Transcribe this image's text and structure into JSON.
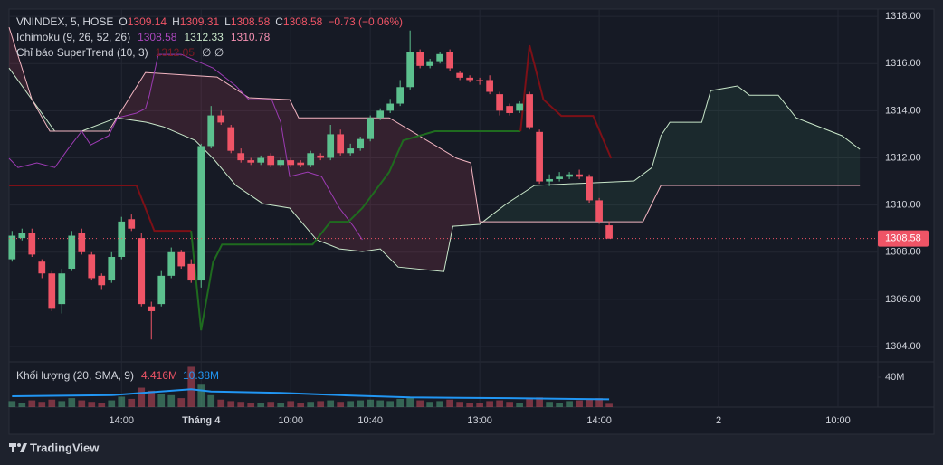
{
  "chart_data": {
    "type": "candlestick",
    "title": "VNINDEX, 5, HOSE",
    "ohlc_legend": [
      {
        "label": "O",
        "value": 1309.14
      },
      {
        "label": "H",
        "value": 1309.31
      },
      {
        "label": "L",
        "value": 1308.58
      },
      {
        "label": "C",
        "value": 1308.58
      }
    ],
    "change": "−0.73 (−0.06%)",
    "up_color": "#5cc08e",
    "down_color": "#ef5466",
    "xlim": [
      -0.3,
      87
    ],
    "ylim": [
      1303.35,
      1318.31
    ],
    "xticks": [
      {
        "value": 11,
        "label": "14:00"
      },
      {
        "value": 19,
        "label": "Tháng 4"
      },
      {
        "value": 28,
        "label": "10:00"
      },
      {
        "value": 36,
        "label": "10:40"
      },
      {
        "value": 47,
        "label": "13:00"
      },
      {
        "value": 59,
        "label": "14:00"
      },
      {
        "value": 71,
        "label": "2"
      },
      {
        "value": 83,
        "label": "10:00"
      }
    ],
    "yticks": [
      {
        "value": 1304,
        "label": "1304.00"
      },
      {
        "value": 1306,
        "label": "1306.00"
      },
      {
        "value": 1308,
        "label": "1308.00"
      },
      {
        "value": 1310,
        "label": "1310.00"
      },
      {
        "value": 1312,
        "label": "1312.00"
      },
      {
        "value": 1314,
        "label": "1314.00"
      },
      {
        "value": 1316,
        "label": "1316.00"
      },
      {
        "value": 1318,
        "label": "1318.00"
      }
    ],
    "last_price": 1308.58,
    "open": [
      1307.7,
      1308.6,
      1308.8,
      1307.6,
      1307.1,
      1305.8,
      1307.3,
      1308.8,
      1307.9,
      1307.0,
      1306.8,
      1307.8,
      1309.4,
      1308.6,
      1305.7,
      1305.8,
      1307.0,
      1308.0,
      1307.5,
      1306.8,
      1312.5,
      1313.8,
      1313.3,
      1312.2,
      1311.9,
      1311.8,
      1312.1,
      1311.7,
      1311.9,
      1311.8,
      1311.7,
      1312.1,
      1312.0,
      1313.0,
      1312.2,
      1312.4,
      1312.8,
      1313.7,
      1314.0,
      1314.3,
      1315.0,
      1316.5,
      1315.9,
      1316.1,
      1316.5,
      1315.6,
      1315.4,
      1315.3,
      1315.3,
      1314.7,
      1314.2,
      1314.0,
      1314.7,
      1313.1,
      1311.0,
      1311.1,
      1311.2,
      1311.3,
      1311.2,
      1310.2,
      1309.14
    ],
    "high": [
      1308.9,
      1309.0,
      1309.0,
      1307.7,
      1307.2,
      1307.3,
      1308.9,
      1309.0,
      1308.0,
      1307.1,
      1308.0,
      1309.5,
      1309.6,
      1308.8,
      1305.9,
      1307.2,
      1308.2,
      1308.1,
      1307.7,
      1312.6,
      1314.2,
      1314.0,
      1313.4,
      1312.4,
      1312.0,
      1312.1,
      1312.2,
      1312.0,
      1312.0,
      1311.9,
      1312.3,
      1312.2,
      1313.4,
      1313.2,
      1312.6,
      1312.9,
      1313.8,
      1314.1,
      1314.5,
      1315.3,
      1317.4,
      1316.6,
      1316.2,
      1316.5,
      1316.6,
      1315.7,
      1315.5,
      1315.4,
      1315.5,
      1314.8,
      1314.3,
      1314.4,
      1314.8,
      1313.2,
      1311.3,
      1311.4,
      1311.4,
      1311.5,
      1311.3,
      1310.3,
      1309.31
    ],
    "low": [
      1307.6,
      1308.5,
      1307.8,
      1306.9,
      1305.5,
      1305.4,
      1307.2,
      1307.9,
      1306.8,
      1306.4,
      1306.7,
      1307.7,
      1308.9,
      1305.7,
      1304.3,
      1305.7,
      1306.9,
      1307.3,
      1306.7,
      1306.5,
      1312.4,
      1313.4,
      1312.2,
      1311.8,
      1311.7,
      1311.7,
      1311.6,
      1311.6,
      1311.6,
      1311.6,
      1311.6,
      1311.9,
      1311.9,
      1312.1,
      1312.1,
      1312.3,
      1312.7,
      1313.6,
      1313.9,
      1314.2,
      1314.9,
      1315.8,
      1315.8,
      1316.0,
      1315.7,
      1315.3,
      1315.2,
      1315.1,
      1314.7,
      1313.8,
      1313.8,
      1313.9,
      1313.2,
      1310.9,
      1310.8,
      1311.0,
      1311.1,
      1311.1,
      1310.1,
      1309.2,
      1308.58
    ],
    "close": [
      1308.7,
      1308.8,
      1307.9,
      1307.1,
      1305.6,
      1307.1,
      1308.7,
      1308.0,
      1306.9,
      1306.6,
      1307.8,
      1309.3,
      1309.0,
      1305.8,
      1305.5,
      1307.0,
      1308.0,
      1307.4,
      1306.8,
      1312.5,
      1313.8,
      1313.5,
      1312.3,
      1311.9,
      1311.8,
      1312.0,
      1311.7,
      1311.9,
      1311.7,
      1311.7,
      1312.2,
      1312.0,
      1313.0,
      1312.2,
      1312.4,
      1312.8,
      1313.7,
      1314.0,
      1314.3,
      1315.0,
      1316.5,
      1315.9,
      1316.1,
      1316.4,
      1315.8,
      1315.4,
      1315.3,
      1315.25,
      1314.8,
      1314.0,
      1313.9,
      1314.3,
      1313.3,
      1311.0,
      1311.1,
      1311.2,
      1311.3,
      1311.2,
      1310.2,
      1309.3,
      1308.58
    ],
    "ichimoku": {
      "name": "Ichimoku (9, 26, 52, 26)",
      "legend_values": [
        1308.58,
        1312.33,
        1310.78
      ],
      "legend_colors": [
        "#ab47bc",
        "#c8e6c9",
        "#f48fb1"
      ],
      "lagging": {
        "color": "#9c3bb3",
        "x": [
          -0.3,
          0.6,
          2.5,
          4.3,
          5.6,
          7.0,
          7.9,
          9.7,
          10.6,
          12.5,
          13.4,
          13.8,
          14.7,
          17.0,
          20.2,
          22.5,
          23.8,
          26.1,
          27.0,
          27.9,
          29.7,
          31.1,
          32.9,
          34.3,
          35.2
        ],
        "values": [
          1311.98,
          1311.59,
          1311.79,
          1311.59,
          1312.36,
          1313.13,
          1312.55,
          1312.94,
          1313.7,
          1313.9,
          1314.09,
          1314.66,
          1316.39,
          1316.39,
          1315.81,
          1315.05,
          1314.47,
          1314.47,
          1313.51,
          1311.21,
          1311.4,
          1311.21,
          1309.87,
          1309.1,
          1308.53
        ]
      },
      "span_a": {
        "color": "#c8e6c9",
        "x": [
          -0.3,
          4.3,
          7.0,
          10.5,
          13.5,
          15.2,
          18.4,
          20.2,
          22.5,
          25.2,
          27.9,
          30.6,
          32.9,
          35.2,
          37.0,
          38.8,
          43.4,
          44.3,
          47.0,
          47.9,
          49.7,
          52.5,
          62.5,
          64.3,
          65.2,
          66.1,
          69.3,
          70.2,
          72.9,
          74.1,
          77.0,
          78.8,
          81.1,
          83.4,
          85.2
        ],
        "values": [
          1315.81,
          1313.13,
          1313.13,
          1313.7,
          1313.51,
          1313.32,
          1312.74,
          1311.98,
          1310.83,
          1310.06,
          1309.87,
          1308.53,
          1308.14,
          1308.03,
          1308.14,
          1307.37,
          1307.18,
          1309.1,
          1309.18,
          1309.48,
          1310.06,
          1310.83,
          1311.02,
          1311.59,
          1312.94,
          1313.51,
          1313.51,
          1314.85,
          1315.05,
          1314.66,
          1314.66,
          1313.7,
          1313.32,
          1312.94,
          1312.36
        ]
      },
      "span_b": {
        "color": "#f4b6c2",
        "x": [
          -0.3,
          2.0,
          3.8,
          9.7,
          13.4,
          20.6,
          23.8,
          27.9,
          28.8,
          37.9,
          44.7,
          46.1,
          47.0,
          63.4,
          65.2,
          85.2
        ],
        "values": [
          1317.54,
          1314.47,
          1313.13,
          1313.13,
          1315.62,
          1315.43,
          1314.55,
          1314.47,
          1313.7,
          1313.7,
          1311.98,
          1311.79,
          1309.29,
          1309.29,
          1310.83,
          1310.83
        ]
      },
      "bull_fill": "rgba(76,175,120,0.10)",
      "bear_fill": "rgba(240,80,110,0.14)"
    },
    "supertrend": {
      "name": "Chỉ báo SuperTrend (10, 3)",
      "legend_value": 1312.05,
      "legend_extra": "∅ ∅",
      "segments": [
        {
          "color": "#7d1017",
          "x": [
            -0.3,
            12.5,
            13.4,
            14.3,
            18.0
          ],
          "values": [
            1310.83,
            1310.83,
            1309.87,
            1308.91,
            1308.91
          ]
        },
        {
          "color": "#1f6b1f",
          "x": [
            18.0,
            19.0,
            20.2,
            21.1,
            30.2,
            32.0,
            33.8,
            35.2,
            37.9,
            39.3,
            42.5,
            51.1
          ],
          "values": [
            1308.91,
            1304.69,
            1307.57,
            1308.33,
            1308.33,
            1309.29,
            1309.29,
            1309.87,
            1311.4,
            1312.74,
            1313.13,
            1313.13
          ]
        },
        {
          "color": "#7d1017",
          "x": [
            51.1,
            52.0,
            53.4,
            55.2,
            58.4,
            60.2
          ],
          "values": [
            1313.13,
            1316.77,
            1314.47,
            1313.78,
            1313.78,
            1311.98
          ]
        }
      ]
    },
    "volume": {
      "name": "Khối lượng (20, SMA, 9)",
      "legend_value": "4.416M",
      "legend_sma": "10.38M",
      "up_color": "rgba(92,192,142,0.45)",
      "down_color": "rgba(239,84,102,0.45)",
      "sma_color": "#2196f3",
      "ylim": [
        0,
        60.6
      ],
      "yticks": [
        {
          "value": 40,
          "label": "40M"
        }
      ],
      "values": [
        8,
        6,
        9,
        7,
        10,
        8,
        12,
        9,
        7,
        6,
        9,
        14,
        11,
        26,
        22,
        18,
        16,
        12,
        54,
        30,
        16,
        10,
        8,
        7,
        6,
        6,
        7,
        6,
        8,
        6,
        7,
        8,
        9,
        7,
        8,
        9,
        10,
        9,
        8,
        11,
        13,
        9,
        7,
        8,
        10,
        7,
        6,
        6,
        8,
        9,
        7,
        6,
        11,
        13,
        7,
        6,
        8,
        9,
        10,
        12,
        4.416
      ],
      "sma_x": [
        0,
        10,
        18,
        20,
        27,
        33,
        40,
        50,
        60
      ],
      "sma": [
        14.5,
        16,
        24,
        21,
        19,
        16,
        13,
        12,
        10.38
      ]
    },
    "footer": "TradingView"
  }
}
